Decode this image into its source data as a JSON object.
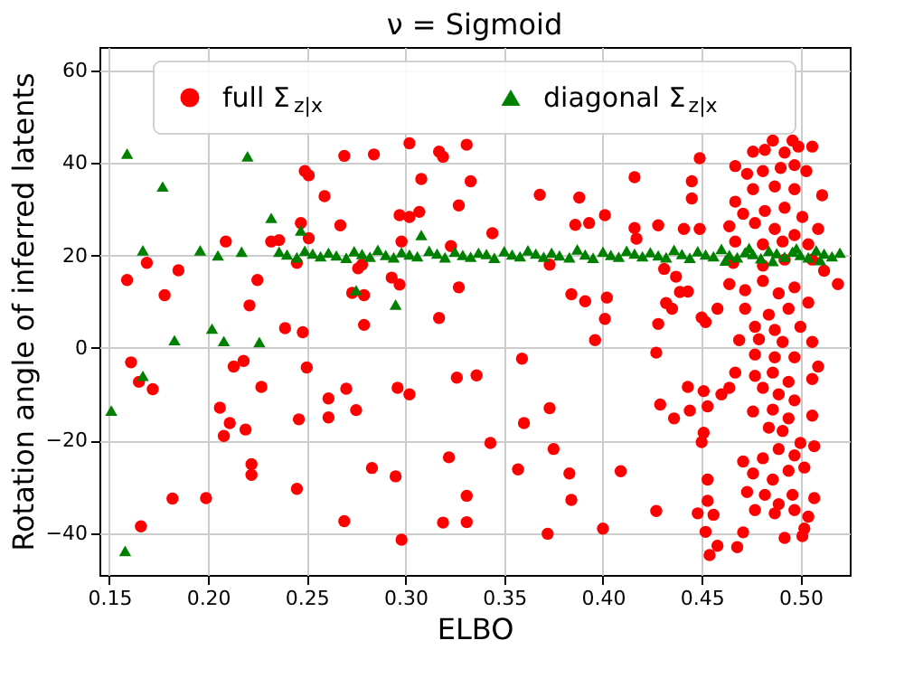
{
  "chart_data": {
    "type": "scatter",
    "title": "ν = Sigmoid",
    "xlabel": "ELBO",
    "ylabel": "Rotation angle of inferred latents",
    "xlim": [
      0.145,
      0.525
    ],
    "xticks": [
      0.15,
      {
        "value": 0.2,
        "label": "0.20"
      },
      0.25,
      {
        "value": 0.3,
        "label": "0.30"
      },
      0.35,
      {
        "value": 0.4,
        "label": "0.40"
      },
      0.45,
      {
        "value": 0.5,
        "label": "0.50"
      }
    ],
    "ylim": [
      -49,
      65
    ],
    "yticks": [
      -40,
      -20,
      0,
      20,
      40,
      60
    ],
    "grid": true,
    "legend": "top",
    "series": [
      {
        "name": "full Σ$_{z|x}$",
        "color": "#ff0000",
        "marker": "circle",
        "x": [
          0.269,
          0.284,
          0.302,
          0.317,
          0.319,
          0.331,
          0.249,
          0.251,
          0.308,
          0.333,
          0.259,
          0.327,
          0.267,
          0.297,
          0.302,
          0.307,
          0.344,
          0.209,
          0.232,
          0.236,
          0.247,
          0.251,
          0.298,
          0.323,
          0.169,
          0.159,
          0.185,
          0.178,
          0.225,
          0.245,
          0.276,
          0.278,
          0.273,
          0.279,
          0.293,
          0.297,
          0.327,
          0.221,
          0.317,
          0.279,
          0.239,
          0.248,
          0.161,
          0.165,
          0.172,
          0.213,
          0.218,
          0.227,
          0.25,
          0.326,
          0.336,
          0.206,
          0.211,
          0.208,
          0.219,
          0.246,
          0.261,
          0.261,
          0.27,
          0.275,
          0.296,
          0.302,
          0.343,
          0.222,
          0.222,
          0.283,
          0.295,
          0.322,
          0.245,
          0.331,
          0.182,
          0.199,
          0.166,
          0.269,
          0.319,
          0.331,
          0.298,
          0.449,
          0.416,
          0.445,
          0.445,
          0.368,
          0.388,
          0.401,
          0.386,
          0.393,
          0.416,
          0.417,
          0.428,
          0.441,
          0.449,
          0.373,
          0.431,
          0.437,
          0.384,
          0.391,
          0.402,
          0.401,
          0.396,
          0.428,
          0.432,
          0.435,
          0.439,
          0.443,
          0.45,
          0.452,
          0.458,
          0.427,
          0.359,
          0.443,
          0.451,
          0.46,
          0.464,
          0.429,
          0.436,
          0.444,
          0.453,
          0.373,
          0.36,
          0.451,
          0.45,
          0.375,
          0.357,
          0.383,
          0.409,
          0.384,
          0.427,
          0.372,
          0.4,
          0.453,
          0.453,
          0.448,
          0.456,
          0.452,
          0.458,
          0.454,
          0.468,
          0.471,
          0.476,
          0.482,
          0.486,
          0.492,
          0.496,
          0.499,
          0.506,
          0.467,
          0.473,
          0.481,
          0.49,
          0.497,
          0.503,
          0.476,
          0.487,
          0.497,
          0.467,
          0.511,
          0.471,
          0.482,
          0.492,
          0.501,
          0.464,
          0.477,
          0.487,
          0.497,
          0.509,
          0.467,
          0.481,
          0.491,
          0.504,
          0.466,
          0.481,
          0.492,
          0.506,
          0.512,
          0.519,
          0.464,
          0.472,
          0.481,
          0.489,
          0.497,
          0.504,
          0.472,
          0.484,
          0.494,
          0.477,
          0.487,
          0.5,
          0.469,
          0.479,
          0.491,
          0.506,
          0.477,
          0.487,
          0.497,
          0.509,
          0.467,
          0.477,
          0.486,
          0.494,
          0.506,
          0.481,
          0.489,
          0.497,
          0.476,
          0.486,
          0.494,
          0.506,
          0.484,
          0.491,
          0.5,
          0.471,
          0.481,
          0.489,
          0.497,
          0.507,
          0.476,
          0.486,
          0.494,
          0.502,
          0.473,
          0.482,
          0.489,
          0.496,
          0.507,
          0.477,
          0.487,
          0.497,
          0.504,
          0.492,
          0.501,
          0.502
        ],
        "values": [
          41.5,
          41.8,
          44.2,
          42.4,
          41.3,
          43.9,
          38.2,
          37.3,
          36.5,
          36.0,
          32.8,
          30.8,
          26.5,
          28.7,
          28.3,
          29.4,
          24.8,
          23.0,
          23.0,
          23.3,
          27.0,
          23.7,
          23.0,
          22.0,
          18.4,
          14.7,
          16.8,
          11.4,
          14.7,
          18.4,
          17.2,
          18.0,
          11.9,
          11.4,
          15.2,
          13.7,
          13.1,
          9.2,
          6.5,
          5.0,
          4.3,
          3.4,
          -3.1,
          -7.3,
          -8.9,
          -4.0,
          -2.8,
          -8.4,
          -4.2,
          -6.4,
          -5.9,
          -12.9,
          -16.2,
          -19.0,
          -17.6,
          -15.4,
          -10.9,
          -15.0,
          -8.8,
          -13.4,
          -8.6,
          -10.0,
          -20.5,
          -25.1,
          -27.4,
          -25.9,
          -27.7,
          -23.6,
          -30.4,
          -31.9,
          -32.5,
          -32.4,
          -38.5,
          -37.4,
          -37.7,
          -37.6,
          -41.4,
          41.0,
          36.9,
          36.0,
          32.3,
          33.1,
          32.5,
          28.7,
          26.6,
          27.0,
          25.9,
          23.6,
          26.5,
          25.7,
          25.7,
          18.0,
          17.1,
          15.4,
          11.6,
          10.1,
          10.9,
          6.3,
          1.7,
          5.2,
          9.7,
          8.5,
          12.1,
          12.2,
          6.6,
          5.6,
          8.5,
          -1.0,
          -2.3,
          -8.4,
          -9.3,
          -10.0,
          -8.6,
          -12.2,
          -15.2,
          -13.5,
          -12.6,
          -13.0,
          -16.2,
          -18.3,
          -20.3,
          -21.8,
          -26.2,
          -27.1,
          -26.6,
          -32.8,
          -35.2,
          -40.1,
          -39.0,
          -28.4,
          -33.0,
          -35.7,
          -36.0,
          -39.7,
          -42.7,
          -44.7,
          -43.0,
          -39.8,
          42.4,
          42.8,
          44.8,
          42.2,
          44.8,
          43.5,
          43.5,
          39.3,
          37.6,
          38.2,
          38.9,
          39.5,
          38.2,
          34.3,
          34.9,
          34.3,
          31.6,
          33.0,
          29.0,
          29.6,
          30.3,
          28.3,
          26.3,
          27.0,
          25.7,
          24.4,
          25.7,
          23.0,
          22.4,
          23.0,
          22.4,
          18.4,
          17.8,
          19.1,
          19.1,
          16.7,
          13.8,
          13.8,
          12.5,
          14.5,
          11.8,
          13.1,
          9.8,
          8.5,
          7.2,
          8.5,
          4.6,
          3.9,
          4.6,
          1.7,
          1.9,
          1.3,
          1.3,
          -1.4,
          -2.0,
          -2.0,
          -4.0,
          -5.3,
          -6.0,
          -5.3,
          -7.3,
          -6.7,
          -8.6,
          -10.0,
          -11.3,
          -13.7,
          -13.3,
          -15.2,
          -14.6,
          -17.2,
          -17.9,
          -20.5,
          -24.5,
          -23.8,
          -21.8,
          -23.2,
          -21.2,
          -27.1,
          -28.4,
          -26.5,
          -25.8,
          -31.1,
          -31.7,
          -33.7,
          -31.7,
          -32.4,
          -35.0,
          -35.7,
          -35.0,
          -36.4,
          -41.0,
          -40.6,
          -39.0
        ]
      },
      {
        "name": "diagonal Σ$_{z|x}$",
        "color": "#008000",
        "marker": "triangle",
        "x": [
          0.159,
          0.22,
          0.177,
          0.232,
          0.247,
          0.308,
          0.167,
          0.196,
          0.205,
          0.217,
          0.275,
          0.295,
          0.183,
          0.202,
          0.208,
          0.226,
          0.167,
          0.151,
          0.158,
          0.236,
          0.24,
          0.245,
          0.249,
          0.253,
          0.257,
          0.261,
          0.265,
          0.27,
          0.274,
          0.278,
          0.282,
          0.286,
          0.29,
          0.294,
          0.298,
          0.302,
          0.306,
          0.312,
          0.316,
          0.32,
          0.325,
          0.329,
          0.333,
          0.337,
          0.341,
          0.345,
          0.35,
          0.354,
          0.358,
          0.362,
          0.366,
          0.37,
          0.374,
          0.378,
          0.383,
          0.387,
          0.391,
          0.395,
          0.4,
          0.404,
          0.408,
          0.412,
          0.416,
          0.42,
          0.424,
          0.428,
          0.432,
          0.436,
          0.44,
          0.444,
          0.448,
          0.452,
          0.456,
          0.46,
          0.464,
          0.468,
          0.472,
          0.476,
          0.48,
          0.484,
          0.488,
          0.492,
          0.496,
          0.5,
          0.504,
          0.508,
          0.512,
          0.516,
          0.52,
          0.462,
          0.474,
          0.486,
          0.498,
          0.51
        ],
        "values": [
          42.0,
          41.4,
          34.9,
          28.1,
          25.4,
          24.4,
          21.1,
          21.1,
          20.0,
          20.8,
          12.5,
          9.4,
          1.7,
          4.2,
          1.5,
          1.3,
          -6.0,
          -13.5,
          -43.8,
          20.8,
          20.2,
          19.6,
          21.0,
          20.4,
          19.8,
          20.6,
          20.0,
          19.5,
          20.9,
          20.3,
          19.7,
          21.2,
          20.1,
          19.6,
          20.7,
          20.2,
          19.8,
          21.0,
          20.4,
          19.6,
          20.8,
          20.1,
          19.7,
          20.6,
          20.3,
          19.5,
          20.9,
          20.2,
          19.8,
          21.1,
          20.4,
          19.7,
          20.6,
          20.0,
          19.6,
          21.3,
          20.2,
          19.5,
          20.8,
          20.1,
          19.7,
          21.0,
          20.4,
          19.8,
          20.7,
          20.0,
          19.6,
          21.2,
          20.3,
          19.5,
          20.9,
          20.2,
          19.8,
          21.4,
          20.1,
          19.6,
          20.7,
          20.3,
          19.4,
          21.0,
          20.5,
          19.7,
          20.8,
          20.1,
          19.6,
          21.1,
          20.4,
          19.8,
          20.6,
          18.9,
          21.6,
          18.8,
          21.5,
          19.0
        ]
      }
    ]
  }
}
